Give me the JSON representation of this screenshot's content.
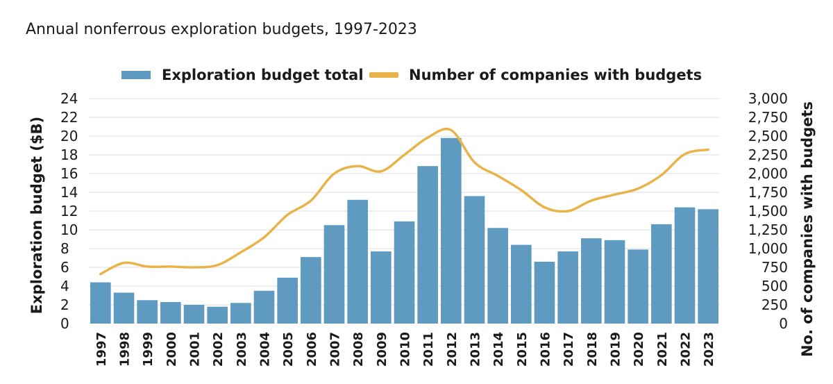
{
  "chart_data": {
    "type": "bar",
    "title": "Annual nonferrous exploration budgets, 1997-2023",
    "categories": [
      "1997",
      "1998",
      "1999",
      "2000",
      "2001",
      "2002",
      "2003",
      "2004",
      "2005",
      "2006",
      "2007",
      "2008",
      "2009",
      "2010",
      "2011",
      "2012",
      "2013",
      "2014",
      "2015",
      "2016",
      "2017",
      "2018",
      "2019",
      "2020",
      "2021",
      "2022",
      "2023"
    ],
    "series": [
      {
        "name": "Exploration budget total",
        "type": "bar",
        "axis": "left",
        "color": "#5f9bc1",
        "values": [
          4.4,
          3.3,
          2.5,
          2.3,
          2.0,
          1.8,
          2.2,
          3.5,
          4.9,
          7.1,
          10.5,
          13.2,
          7.7,
          10.9,
          16.8,
          19.8,
          13.6,
          10.2,
          8.4,
          6.6,
          7.7,
          9.1,
          8.9,
          7.9,
          10.6,
          12.4,
          12.2
        ]
      },
      {
        "name": "Number of companies with budgets",
        "type": "line",
        "axis": "right",
        "color": "#e8b44a",
        "values": [
          660,
          810,
          760,
          760,
          750,
          780,
          950,
          1150,
          1450,
          1640,
          2000,
          2100,
          2030,
          2250,
          2480,
          2580,
          2150,
          1970,
          1780,
          1550,
          1500,
          1640,
          1720,
          1800,
          1980,
          2260,
          2320
        ]
      }
    ],
    "left_axis": {
      "label": "Exploration budget ($B)",
      "ylim": [
        0,
        24
      ],
      "ticks": [
        "0",
        "2",
        "4",
        "6",
        "8",
        "10",
        "12",
        "14",
        "16",
        "18",
        "20",
        "22",
        "24"
      ]
    },
    "right_axis": {
      "label": "No. of companies with budgets",
      "ylim": [
        0,
        3000
      ],
      "ticks": [
        "0",
        "250",
        "500",
        "750",
        "1,000",
        "1,250",
        "1,500",
        "1,750",
        "2,000",
        "2,250",
        "2,500",
        "2,750",
        "3,000"
      ]
    },
    "grid": true,
    "legend_position": "top-center"
  }
}
